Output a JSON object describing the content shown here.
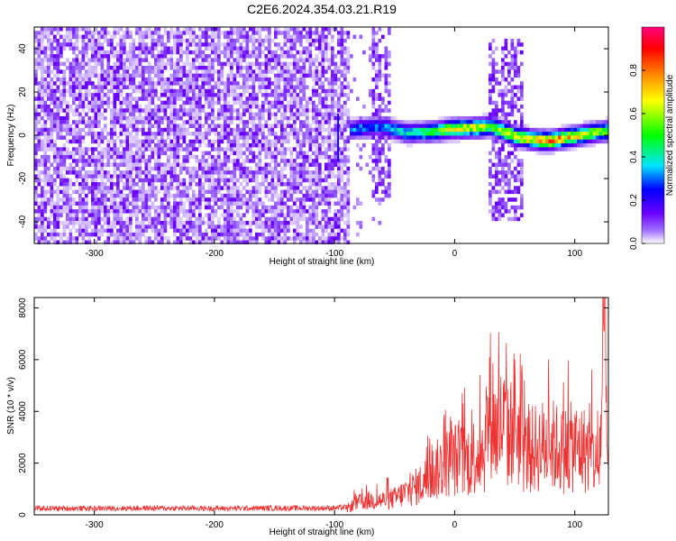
{
  "chart_data": [
    {
      "type": "heatmap",
      "title": "C2E6.2024.354.03.21.R19",
      "xlabel": "Height of straight line (km)",
      "ylabel": "Frequency (Hz)",
      "xlim": [
        -350,
        128
      ],
      "ylim": [
        -50,
        50
      ],
      "x_ticks": [
        -300,
        -200,
        -100,
        0,
        100
      ],
      "y_ticks": [
        -40,
        -20,
        0,
        20,
        40
      ],
      "grid": false,
      "colorbar": {
        "label": "Normalized spectral amplitude",
        "range": [
          0.0,
          1.0
        ],
        "ticks": [
          0.0,
          0.2,
          0.4,
          0.6,
          0.8
        ],
        "tick_labels": [
          "0.0",
          "0.2",
          "0.4",
          "0.6",
          "0.8"
        ],
        "colormap": [
          "#ffffff",
          "#6a00ff",
          "#0000ff",
          "#00e5ff",
          "#00ff00",
          "#ffff00",
          "#ff8800",
          "#ff0000",
          "#ff0080"
        ]
      },
      "regions": {
        "noise_floor": {
          "x_range": [
            -350,
            -88
          ],
          "amplitude": "low (0.05-0.15)"
        },
        "signal_ridge": {
          "x": [
            -95,
            -80,
            -60,
            -40,
            -20,
            0,
            20,
            30,
            40,
            50,
            60,
            70,
            80,
            90,
            100,
            110,
            120,
            128
          ],
          "frequency": [
            2.0,
            3.0,
            4.0,
            1.0,
            1.5,
            3.0,
            3.5,
            4.0,
            2.0,
            -0.5,
            -1.5,
            -2.5,
            -2.5,
            -1.5,
            -0.5,
            0.5,
            1.5,
            2.0
          ],
          "amplitude": [
            0.25,
            0.35,
            0.35,
            0.45,
            0.55,
            0.7,
            0.7,
            0.6,
            0.7,
            0.75,
            0.75,
            0.8,
            0.85,
            0.8,
            0.75,
            0.7,
            0.65,
            0.6
          ]
        },
        "vertical_bursts": [
          {
            "x_range": [
              -70,
              -52
            ],
            "frequency_range": [
              -30,
              50
            ]
          },
          {
            "x_range": [
              27,
              57
            ],
            "frequency_range": [
              -40,
              45
            ]
          }
        ]
      }
    },
    {
      "type": "line",
      "xlabel": "Height of straight line (km)",
      "ylabel": "SNR (10 * v/v)",
      "xlim": [
        -350,
        128
      ],
      "ylim": [
        0,
        8400
      ],
      "x_ticks": [
        -300,
        -200,
        -100,
        0,
        100
      ],
      "y_ticks": [
        0,
        2000,
        4000,
        6000,
        8000
      ],
      "grid": false,
      "series": [
        {
          "color": "#ee3333",
          "x": [
            -350,
            -300,
            -250,
            -200,
            -150,
            -100,
            -90,
            -80,
            -70,
            -60,
            -50,
            -40,
            -30,
            -20,
            -10,
            0,
            10,
            20,
            25,
            30,
            35,
            40,
            45,
            50,
            55,
            60,
            70,
            80,
            90,
            100,
            110,
            115,
            120,
            125,
            128
          ],
          "y": [
            250,
            250,
            260,
            250,
            260,
            260,
            300,
            600,
            700,
            700,
            800,
            1100,
            1400,
            1900,
            2400,
            2700,
            2600,
            3000,
            3200,
            5500,
            3800,
            4500,
            3600,
            5000,
            3200,
            3000,
            3300,
            3400,
            3100,
            3300,
            3100,
            2800,
            2200,
            8300,
            1200
          ]
        }
      ]
    }
  ]
}
